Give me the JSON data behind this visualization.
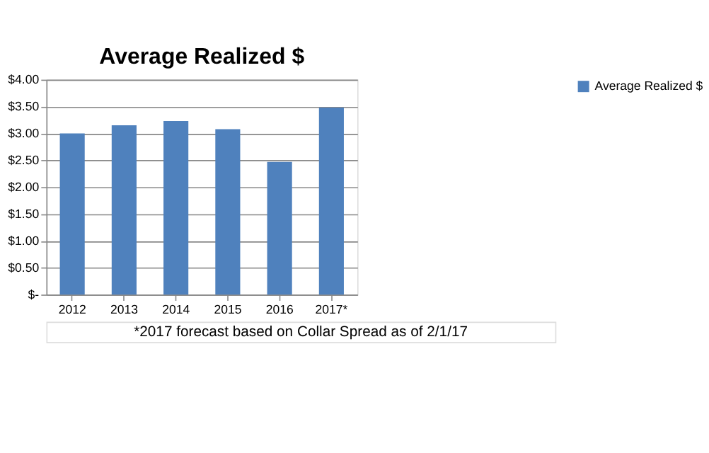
{
  "chart_data": {
    "type": "bar",
    "title": "Average Realized $",
    "categories": [
      "2012",
      "2013",
      "2014",
      "2015",
      "2016",
      "2017*"
    ],
    "series": [
      {
        "name": "Average Realized $",
        "color": "#4f81bd",
        "values": [
          3.0,
          3.15,
          3.23,
          3.08,
          2.47,
          3.48
        ]
      }
    ],
    "ylim": [
      0,
      4
    ],
    "yticks": [
      {
        "value": 0,
        "label": "$-"
      },
      {
        "value": 0.5,
        "label": "$0.50"
      },
      {
        "value": 1,
        "label": "$1.00"
      },
      {
        "value": 1.5,
        "label": "$1.50"
      },
      {
        "value": 2,
        "label": "$2.00"
      },
      {
        "value": 2.5,
        "label": "$2.50"
      },
      {
        "value": 3,
        "label": "$3.00"
      },
      {
        "value": 3.5,
        "label": "$3.50"
      },
      {
        "value": 4,
        "label": "$4.00"
      }
    ],
    "grid": "y",
    "legend": "right",
    "annotations": [
      "*2017 forecast based on Collar Spread as of 2/1/17"
    ]
  }
}
